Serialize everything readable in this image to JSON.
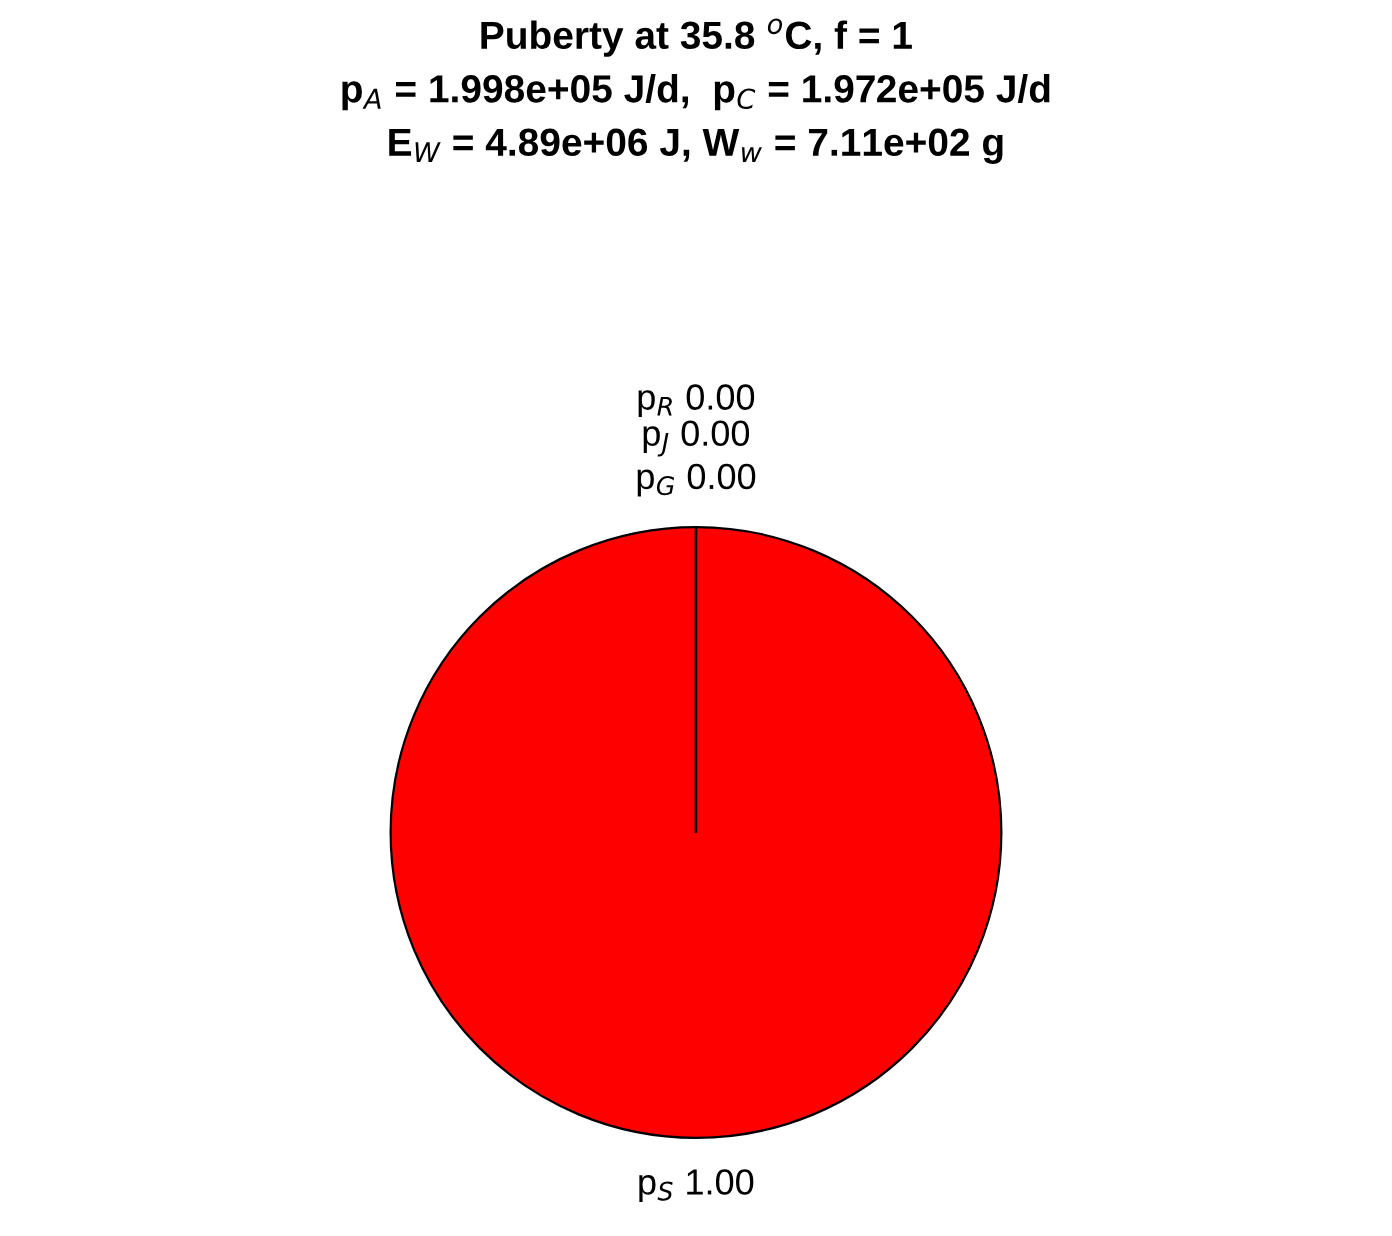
{
  "chart_data": {
    "type": "pie",
    "title": "Puberty at 35.8 $^{o}$C, f = 1\np$_{A}$ = 1.998e+05 J/d,  p$_{C}$ = 1.972e+05 J/d\nE$_{W}$ = 4.89e+06 J, W$_{w}$ = 7.11e+02 g",
    "categories": [
      "p$_{S}$",
      "p$_{G}$",
      "p$_{J}$",
      "p$_{R}$"
    ],
    "values": [
      1,
      0,
      0,
      0
    ],
    "value_labels": [
      "1.00",
      "0.00",
      "0.00",
      "0.00"
    ],
    "colors": [
      "#ff0000",
      "#00ff00",
      "#0000ff",
      "#ffff00"
    ]
  }
}
